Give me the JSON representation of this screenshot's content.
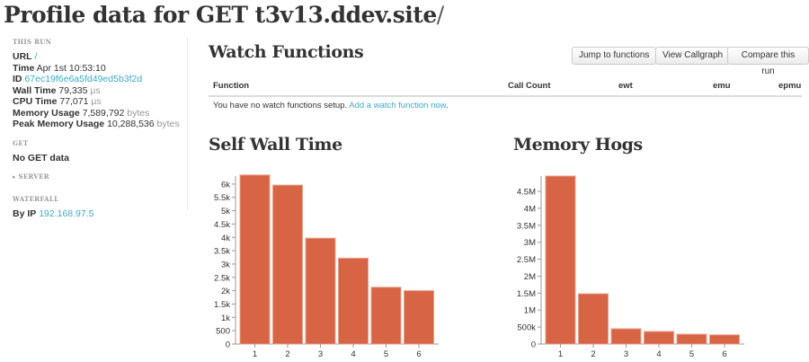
{
  "title": {
    "main": "Profile data for GET t3v13.ddev.site",
    "slash": "/"
  },
  "sidebar": {
    "this_run": "This Run",
    "url_label": "URL",
    "url_value": "/",
    "time_label": "Time",
    "time_value": "Apr 1st 10:53:10",
    "id_label": "ID",
    "id_value": "67ec19f6e6a5fd49ed5b3f2d",
    "wall_label": "Wall Time",
    "wall_value": "79,335",
    "wall_unit": "µs",
    "cpu_label": "CPU Time",
    "cpu_value": "77,071",
    "cpu_unit": "µs",
    "mem_label": "Memory Usage",
    "mem_value": "7,589,792",
    "mem_unit": "bytes",
    "peak_label": "Peak Memory Usage",
    "peak_value": "10,288,536",
    "peak_unit": "bytes",
    "get": "Get",
    "get_value": "No GET data",
    "server": "▸ Server",
    "waterfall": "Waterfall",
    "byip_label": "By IP",
    "byip_value": "192.168.97.5"
  },
  "watch": {
    "title": "Watch Functions",
    "buttons": [
      "Jump to functions",
      "View Callgraph",
      "Compare this run"
    ],
    "columns": [
      "Function",
      "Call Count",
      "ewt",
      "emu",
      "epmu"
    ],
    "empty_text": "You have no watch functions setup.",
    "empty_link": "Add a watch function now",
    "period": "."
  },
  "colors": {
    "bar": "#d66445",
    "link": "#3fa9c9"
  },
  "chart_data": [
    {
      "type": "bar",
      "title": "Self Wall Time",
      "categories": [
        "1",
        "2",
        "3",
        "4",
        "5",
        "6"
      ],
      "values": [
        6340,
        5960,
        3970,
        3220,
        2130,
        2000
      ],
      "ylim": [
        0,
        6300
      ],
      "yticks": [
        0,
        500,
        1000,
        1500,
        2000,
        2500,
        3000,
        3500,
        4000,
        4500,
        5000,
        5500,
        6000
      ],
      "ytick_labels": [
        "0",
        "500",
        "1k",
        "1.5k",
        "2k",
        "2.5k",
        "3k",
        "3.5k",
        "4k",
        "4.5k",
        "5k",
        "5.5k",
        "6k"
      ]
    },
    {
      "type": "bar",
      "title": "Memory Hogs",
      "categories": [
        "1",
        "2",
        "3",
        "4",
        "5",
        "6"
      ],
      "values": [
        4950000,
        1480000,
        450000,
        370000,
        290000,
        270000
      ],
      "ylim": [
        0,
        4950000
      ],
      "yticks": [
        0,
        500000,
        1000000,
        1500000,
        2000000,
        2500000,
        3000000,
        3500000,
        4000000,
        4500000
      ],
      "ytick_labels": [
        "0",
        "500k",
        "1M",
        "1.5M",
        "2M",
        "2.5M",
        "3M",
        "3.5M",
        "4M",
        "4.5M"
      ]
    }
  ]
}
